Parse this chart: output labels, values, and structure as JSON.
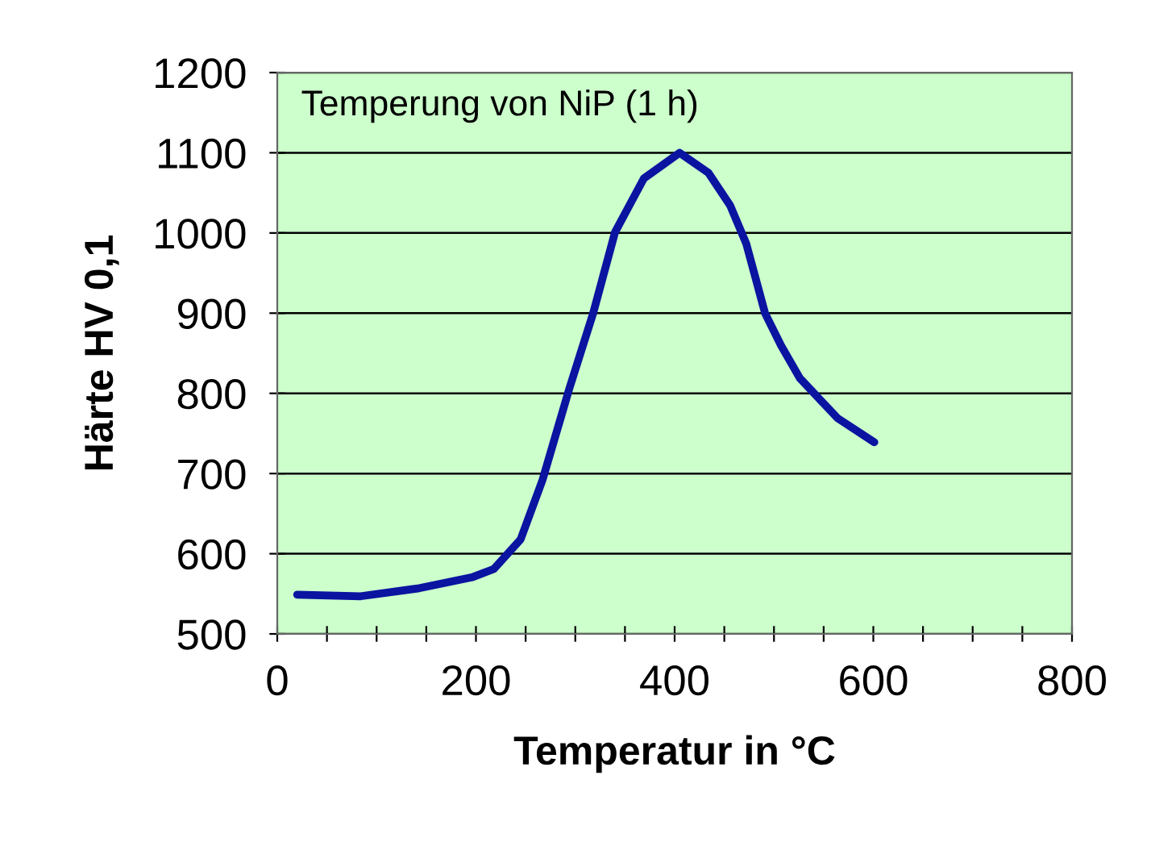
{
  "chart_data": {
    "type": "line",
    "xlabel": "Temperatur in °C",
    "ylabel": "Härte HV 0,1",
    "annotations": [
      "Temperung von NiP (1 h)"
    ],
    "series": [
      {
        "color": "#0a14a0",
        "x": [
          20,
          84,
          143,
          197,
          218,
          245,
          267,
          294,
          318,
          340,
          369,
          405,
          434,
          456,
          472,
          491,
          507,
          526,
          564,
          601
        ],
        "values": [
          549,
          547,
          557,
          571,
          581,
          618,
          692,
          806,
          900,
          1001,
          1068,
          1100,
          1075,
          1034,
          987,
          900,
          860,
          819,
          769,
          739
        ]
      }
    ],
    "xlim": [
      0,
      800
    ],
    "ylim": [
      500,
      1200
    ],
    "xticks": [
      0,
      {
        "value": 50,
        "label": null
      },
      {
        "value": 100,
        "label": null
      },
      {
        "value": 150,
        "label": null
      },
      200,
      {
        "value": 250,
        "label": null
      },
      {
        "value": 300,
        "label": null
      },
      {
        "value": 350,
        "label": null
      },
      400,
      {
        "value": 450,
        "label": null
      },
      {
        "value": 500,
        "label": null
      },
      {
        "value": 550,
        "label": null
      },
      600,
      {
        "value": 650,
        "label": null
      },
      {
        "value": 700,
        "label": null
      },
      {
        "value": 750,
        "label": null
      },
      800
    ],
    "yticks": [
      500,
      600,
      700,
      800,
      900,
      1000,
      1100,
      1200
    ],
    "grid": "y",
    "line_style": "solid",
    "marker": "none",
    "legend": false
  }
}
